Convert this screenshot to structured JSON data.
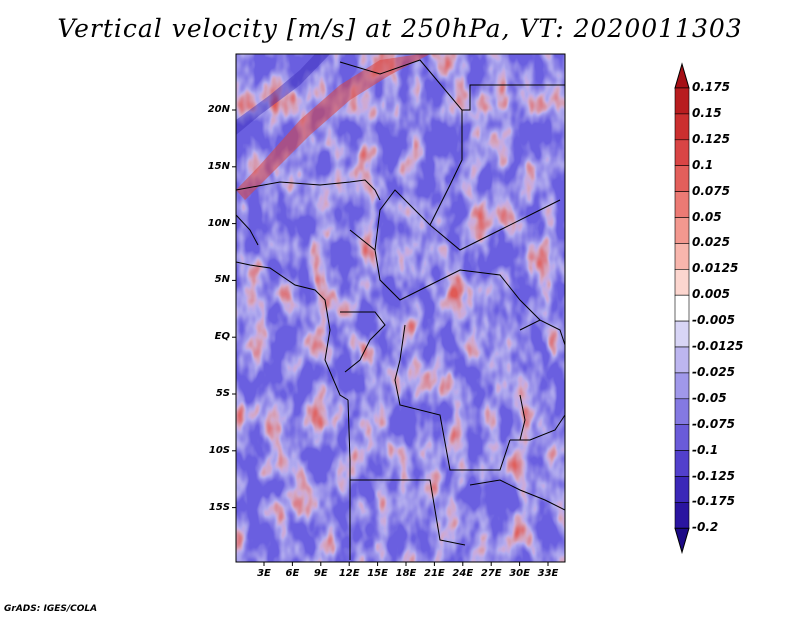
{
  "title": "Vertical velocity [m/s] at 250hPa, VT: 2020011303",
  "footer": "GrADS: IGES/COLA",
  "map": {
    "variable": "Vertical velocity",
    "units": "m/s",
    "level": "250hPa",
    "valid_time": "2020011303",
    "lat_labels": [
      "20N",
      "15N",
      "10N",
      "5N",
      "EQ",
      "5S",
      "10S",
      "15S"
    ],
    "lon_labels": [
      "3E",
      "6E",
      "9E",
      "12E",
      "15E",
      "18E",
      "21E",
      "24E",
      "27E",
      "30E",
      "33E"
    ]
  },
  "colorbar": {
    "labels": [
      "0.175",
      "0.15",
      "0.125",
      "0.1",
      "0.075",
      "0.05",
      "0.025",
      "0.0125",
      "0.005",
      "-0.005",
      "-0.0125",
      "-0.025",
      "-0.05",
      "-0.075",
      "-0.1",
      "-0.125",
      "-0.175",
      "-0.2"
    ],
    "colors": [
      "#a50f15",
      "#b81d1f",
      "#cb2f2f",
      "#d94545",
      "#e35f5b",
      "#ec7a74",
      "#f3988f",
      "#f8b6ad",
      "#fcd6cf",
      "#ffffff",
      "#d8d5f6",
      "#bdb6f0",
      "#a098ea",
      "#8479e2",
      "#6a5bd9",
      "#5240cc",
      "#3b27b8",
      "#2a14a0",
      "#1c0a86"
    ]
  }
}
